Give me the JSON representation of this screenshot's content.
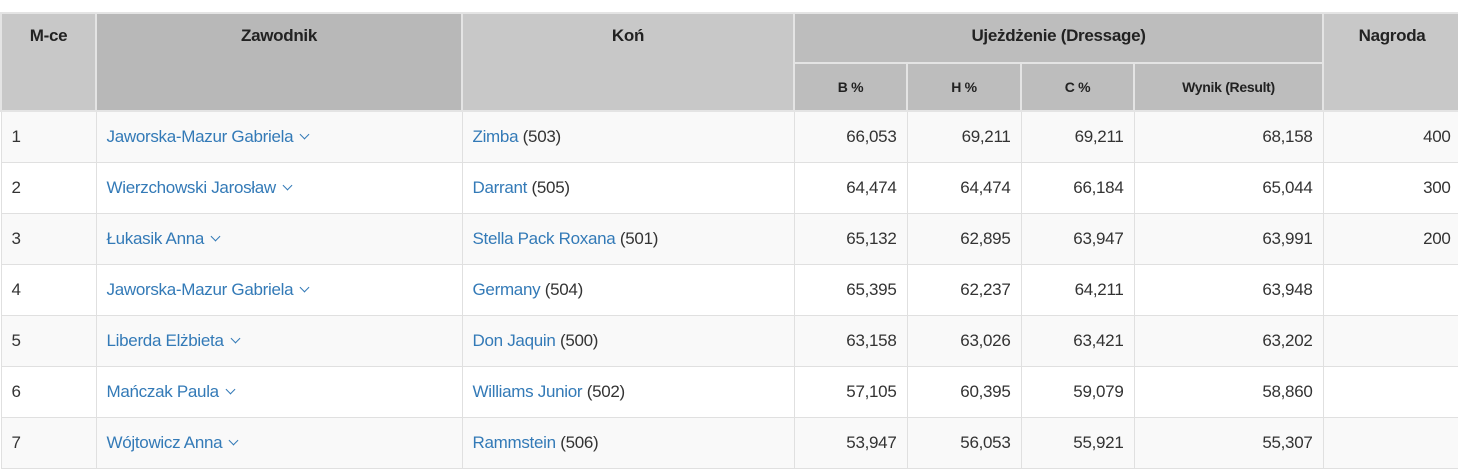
{
  "headers": {
    "place": "M-ce",
    "rider": "Zawodnik",
    "horse": "Koń",
    "dressage": "Ujeżdżenie (Dressage)",
    "b": "B %",
    "h": "H %",
    "c": "C %",
    "result": "Wynik (Result)",
    "prize": "Nagroda"
  },
  "rows": [
    {
      "place": "1",
      "rider": "Jaworska-Mazur Gabriela",
      "horse": "Zimba",
      "num": "(503)",
      "b": "66,053",
      "h": "69,211",
      "c": "69,211",
      "result": "68,158",
      "prize": "400"
    },
    {
      "place": "2",
      "rider": "Wierzchowski Jarosław",
      "horse": "Darrant",
      "num": "(505)",
      "b": "64,474",
      "h": "64,474",
      "c": "66,184",
      "result": "65,044",
      "prize": "300"
    },
    {
      "place": "3",
      "rider": "Łukasik Anna",
      "horse": "Stella Pack Roxana",
      "num": "(501)",
      "b": "65,132",
      "h": "62,895",
      "c": "63,947",
      "result": "63,991",
      "prize": "200"
    },
    {
      "place": "4",
      "rider": "Jaworska-Mazur Gabriela",
      "horse": "Germany",
      "num": "(504)",
      "b": "65,395",
      "h": "62,237",
      "c": "64,211",
      "result": "63,948",
      "prize": ""
    },
    {
      "place": "5",
      "rider": "Liberda Elżbieta",
      "horse": "Don Jaquin",
      "num": "(500)",
      "b": "63,158",
      "h": "63,026",
      "c": "63,421",
      "result": "63,202",
      "prize": ""
    },
    {
      "place": "6",
      "rider": "Mańczak Paula",
      "horse": "Williams Junior",
      "num": "(502)",
      "b": "57,105",
      "h": "60,395",
      "c": "59,079",
      "result": "58,860",
      "prize": ""
    },
    {
      "place": "7",
      "rider": "Wójtowicz Anna",
      "horse": "Rammstein",
      "num": "(506)",
      "b": "53,947",
      "h": "56,053",
      "c": "55,921",
      "result": "55,307",
      "prize": ""
    }
  ]
}
